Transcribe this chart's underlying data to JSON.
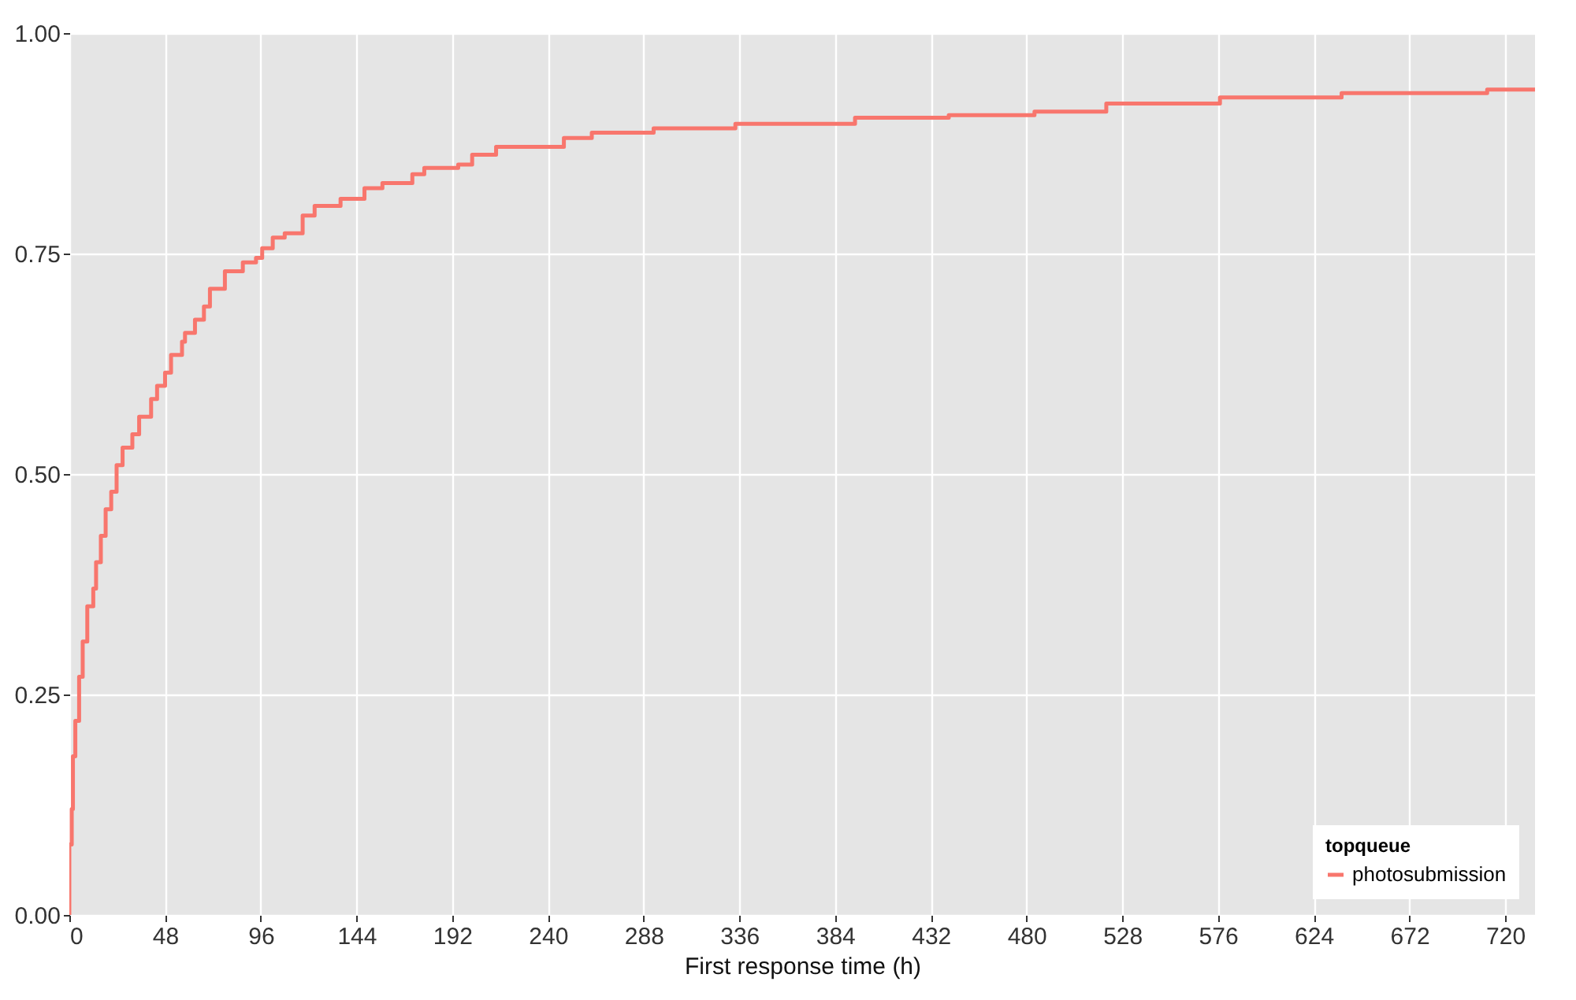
{
  "chart_data": {
    "type": "step",
    "xlabel": "First response time (h)",
    "legend_title": "topqueue",
    "legend": "bottom right",
    "grid": true,
    "xlim": [
      0,
      735
    ],
    "ylim": [
      0,
      1
    ],
    "xticks": [
      0,
      48,
      96,
      144,
      192,
      240,
      288,
      336,
      384,
      432,
      480,
      528,
      576,
      624,
      672,
      720
    ],
    "yticks": [
      {
        "value": 0,
        "label": "0.00"
      },
      {
        "value": 0.25,
        "label": "0.25"
      },
      {
        "value": 0.5,
        "label": "0.50"
      },
      {
        "value": 0.75,
        "label": "0.75"
      },
      {
        "value": 1,
        "label": "1.00"
      }
    ],
    "x": [
      0,
      0,
      1.2,
      1.8,
      3,
      4.9,
      6.7,
      9,
      12,
      13.4,
      15.8,
      18.2,
      21,
      23.7,
      26.7,
      31.6,
      35,
      41,
      44,
      48,
      51,
      56.5,
      58,
      63,
      67.5,
      70.5,
      78,
      87,
      93.6,
      96.7,
      102,
      108,
      117,
      123,
      136,
      148,
      157,
      172,
      178,
      195,
      202,
      214,
      248,
      262,
      293,
      334,
      394,
      441,
      484,
      520,
      577,
      638,
      711,
      735
    ],
    "series": [
      {
        "name": "photosubmission",
        "color": "#f8766d",
        "values": [
          0,
          0.08,
          0.12,
          0.18,
          0.22,
          0.27,
          0.31,
          0.35,
          0.37,
          0.4,
          0.43,
          0.46,
          0.48,
          0.51,
          0.53,
          0.545,
          0.565,
          0.585,
          0.6,
          0.615,
          0.635,
          0.65,
          0.66,
          0.675,
          0.69,
          0.71,
          0.73,
          0.74,
          0.745,
          0.756,
          0.768,
          0.773,
          0.793,
          0.804,
          0.812,
          0.824,
          0.83,
          0.84,
          0.847,
          0.851,
          0.862,
          0.871,
          0.881,
          0.887,
          0.892,
          0.897,
          0.904,
          0.907,
          0.911,
          0.92,
          0.927,
          0.932,
          0.936,
          0.936
        ]
      }
    ]
  }
}
